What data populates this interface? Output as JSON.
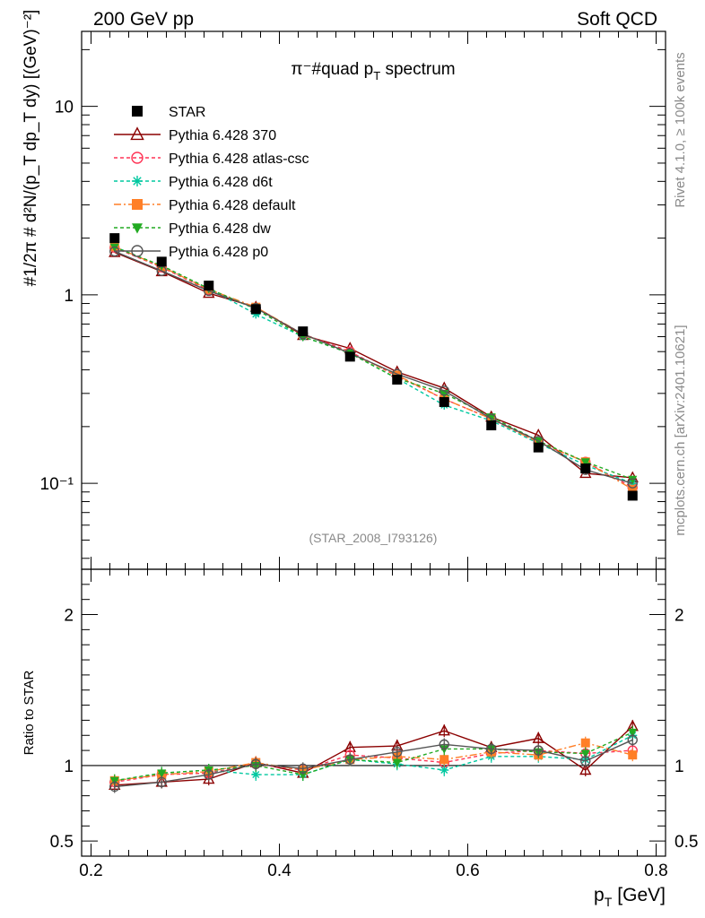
{
  "header": {
    "left_label": "200 GeV pp",
    "right_label": "Soft QCD"
  },
  "side": {
    "rivet": "Rivet 4.1.0, ≥ 100k events",
    "mcplots": "mcplots.cern.ch [arXiv:2401.10621]"
  },
  "chart_data": {
    "type": "line",
    "title": "π⁻#quad p_T spectrum",
    "title_main": "π⁻#quad p",
    "title_sub": "T",
    "title_tail": " spectrum",
    "analysis_id": "(STAR_2008_I793126)",
    "ylabel_main": "#1/2π # d²N/(p_T dp_T dy) [(GeV)⁻²]",
    "ylabel_ratio": "Ratio to STAR",
    "xlabel": "p_T [GeV]",
    "xlabel_main": "p",
    "xlabel_sub": "T",
    "xlabel_unit": "[GeV]",
    "xlim": [
      0.19,
      0.81
    ],
    "ylim_main": [
      0.035,
      25
    ],
    "ylim_ratio": [
      0.4,
      2.3
    ],
    "yscale_main": "log",
    "x_ticks": [
      0.2,
      0.4,
      0.6,
      0.8
    ],
    "x_tick_labels": [
      "0.2",
      "0.4",
      "0.6",
      "0.8"
    ],
    "y_ticks_main": [
      0.1,
      1,
      10
    ],
    "y_tick_labels_main": [
      "10⁻¹",
      "1",
      "10"
    ],
    "y_ticks_ratio": [
      0.5,
      1,
      2
    ],
    "y_tick_labels_ratio": [
      "0.5",
      "1",
      "2"
    ],
    "legend_position": "top-left",
    "x": [
      0.225,
      0.275,
      0.325,
      0.375,
      0.425,
      0.475,
      0.525,
      0.575,
      0.625,
      0.675,
      0.725,
      0.775
    ],
    "data": {
      "name": "STAR",
      "color": "#000000",
      "values": [
        2.0,
        1.5,
        1.12,
        0.84,
        0.64,
        0.47,
        0.355,
        0.27,
        0.203,
        0.155,
        0.12,
        0.086
      ],
      "ratio": [
        1,
        1,
        1,
        1,
        1,
        1,
        1,
        1,
        1,
        1,
        1,
        1
      ]
    },
    "series": [
      {
        "name": "Pythia 6.428 370",
        "color": "#8b0000",
        "marker": "triangle-open",
        "dash": "",
        "values": [
          1.68,
          1.33,
          1.02,
          0.86,
          0.61,
          0.52,
          0.39,
          0.32,
          0.225,
          0.18,
          0.113,
          0.107
        ],
        "ratio": [
          0.87,
          0.89,
          0.91,
          1.02,
          0.95,
          1.12,
          1.13,
          1.23,
          1.12,
          1.18,
          0.97,
          1.26
        ]
      },
      {
        "name": "Pythia 6.428 atlas-csc",
        "color": "#ff3355",
        "marker": "circle-open",
        "dash": "4,3",
        "values": [
          1.78,
          1.4,
          1.06,
          0.85,
          0.62,
          0.5,
          0.37,
          0.28,
          0.22,
          0.165,
          0.13,
          0.095
        ],
        "ratio": [
          0.89,
          0.94,
          0.95,
          1.01,
          0.97,
          1.07,
          1.05,
          1.02,
          1.08,
          1.1,
          1.08,
          1.1
        ]
      },
      {
        "name": "Pythia 6.428 d6t",
        "color": "#00c8a0",
        "marker": "star",
        "dash": "4,3",
        "values": [
          1.8,
          1.42,
          1.08,
          0.79,
          0.6,
          0.49,
          0.36,
          0.26,
          0.215,
          0.163,
          0.125,
          0.1
        ],
        "ratio": [
          0.9,
          0.95,
          0.97,
          0.94,
          0.94,
          1.04,
          1.01,
          0.97,
          1.06,
          1.06,
          1.04,
          1.2
        ]
      },
      {
        "name": "Pythia 6.428 default",
        "color": "#ff7f27",
        "marker": "square",
        "dash": "8,3,2,3",
        "values": [
          1.8,
          1.41,
          1.07,
          0.86,
          0.62,
          0.49,
          0.375,
          0.28,
          0.22,
          0.165,
          0.13,
          0.093
        ],
        "ratio": [
          0.9,
          0.94,
          0.96,
          1.02,
          0.97,
          1.04,
          1.06,
          1.04,
          1.09,
          1.07,
          1.15,
          1.07
        ]
      },
      {
        "name": "Pythia 6.428 dw",
        "color": "#22aa22",
        "marker": "triangle-down",
        "dash": "4,3",
        "values": [
          1.79,
          1.43,
          1.08,
          0.84,
          0.6,
          0.49,
          0.36,
          0.3,
          0.225,
          0.168,
          0.13,
          0.105
        ],
        "ratio": [
          0.9,
          0.95,
          0.97,
          1.0,
          0.94,
          1.04,
          1.02,
          1.11,
          1.11,
          1.09,
          1.08,
          1.22
        ]
      },
      {
        "name": "Pythia 6.428 p0",
        "color": "#555555",
        "marker": "circle-open",
        "dash": "",
        "values": [
          1.7,
          1.34,
          1.05,
          0.85,
          0.62,
          0.49,
          0.38,
          0.31,
          0.22,
          0.168,
          0.118,
          0.1
        ],
        "ratio": [
          0.86,
          0.89,
          0.94,
          1.01,
          0.98,
          1.04,
          1.09,
          1.14,
          1.11,
          1.1,
          1.03,
          1.17
        ]
      }
    ]
  }
}
